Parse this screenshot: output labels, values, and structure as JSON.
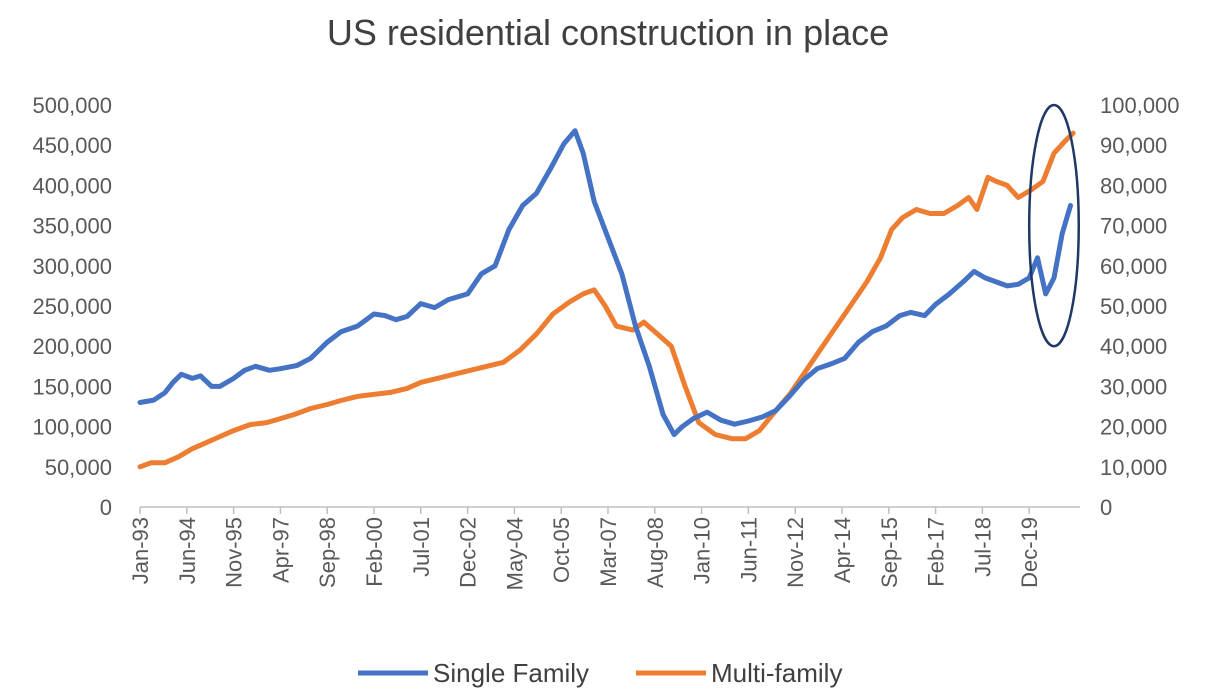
{
  "chart_data": {
    "type": "line",
    "title": "US residential construction in place",
    "xlabel": "",
    "ylabel": "",
    "y2label": "",
    "ylim": [
      0,
      500000
    ],
    "y2lim": [
      0,
      100000
    ],
    "yticks": [
      "0",
      "50,000",
      "100,000",
      "150,000",
      "200,000",
      "250,000",
      "300,000",
      "350,000",
      "400,000",
      "450,000",
      "500,000"
    ],
    "y2ticks": [
      "0",
      "10,000",
      "20,000",
      "30,000",
      "40,000",
      "50,000",
      "60,000",
      "70,000",
      "80,000",
      "90,000",
      "100,000"
    ],
    "xticks": [
      "Jan-93",
      "Jun-94",
      "Nov-95",
      "Apr-97",
      "Sep-98",
      "Feb-00",
      "Jul-01",
      "Dec-02",
      "May-04",
      "Oct-05",
      "Mar-07",
      "Aug-08",
      "Jan-10",
      "Jun-11",
      "Nov-12",
      "Apr-14",
      "Sep-15",
      "Feb-17",
      "Jul-18",
      "Dec-19"
    ],
    "grid": false,
    "legend": "bottom",
    "series": [
      {
        "name": "Single Family",
        "axis": "left",
        "color": "#4472C4",
        "points": [
          [
            "1993-01",
            130000
          ],
          [
            "1993-06",
            133000
          ],
          [
            "1993-10",
            142000
          ],
          [
            "1994-01",
            155000
          ],
          [
            "1994-04",
            165000
          ],
          [
            "1994-08",
            160000
          ],
          [
            "1994-11",
            163000
          ],
          [
            "1995-03",
            150000
          ],
          [
            "1995-06",
            150000
          ],
          [
            "1995-11",
            160000
          ],
          [
            "1996-03",
            170000
          ],
          [
            "1996-07",
            175000
          ],
          [
            "1996-12",
            170000
          ],
          [
            "1997-04",
            172000
          ],
          [
            "1997-10",
            176000
          ],
          [
            "1998-03",
            185000
          ],
          [
            "1998-09",
            205000
          ],
          [
            "1999-02",
            218000
          ],
          [
            "1999-08",
            225000
          ],
          [
            "2000-02",
            240000
          ],
          [
            "2000-06",
            238000
          ],
          [
            "2000-10",
            233000
          ],
          [
            "2001-02",
            237000
          ],
          [
            "2001-07",
            253000
          ],
          [
            "2001-12",
            248000
          ],
          [
            "2002-05",
            258000
          ],
          [
            "2002-12",
            265000
          ],
          [
            "2003-05",
            290000
          ],
          [
            "2003-10",
            300000
          ],
          [
            "2004-03",
            345000
          ],
          [
            "2004-08",
            375000
          ],
          [
            "2005-01",
            390000
          ],
          [
            "2005-06",
            420000
          ],
          [
            "2005-11",
            452000
          ],
          [
            "2006-03",
            468000
          ],
          [
            "2006-06",
            440000
          ],
          [
            "2006-10",
            380000
          ],
          [
            "2007-03",
            335000
          ],
          [
            "2007-08",
            290000
          ],
          [
            "2008-01",
            225000
          ],
          [
            "2008-06",
            175000
          ],
          [
            "2008-11",
            115000
          ],
          [
            "2009-03",
            90000
          ],
          [
            "2009-06",
            100000
          ],
          [
            "2009-10",
            110000
          ],
          [
            "2010-03",
            118000
          ],
          [
            "2010-08",
            108000
          ],
          [
            "2011-01",
            103000
          ],
          [
            "2011-06",
            107000
          ],
          [
            "2011-11",
            112000
          ],
          [
            "2012-04",
            120000
          ],
          [
            "2012-09",
            138000
          ],
          [
            "2013-02",
            158000
          ],
          [
            "2013-07",
            172000
          ],
          [
            "2013-12",
            178000
          ],
          [
            "2014-05",
            185000
          ],
          [
            "2014-10",
            205000
          ],
          [
            "2015-03",
            218000
          ],
          [
            "2015-08",
            225000
          ],
          [
            "2016-01",
            238000
          ],
          [
            "2016-05",
            242000
          ],
          [
            "2016-10",
            238000
          ],
          [
            "2017-02",
            252000
          ],
          [
            "2017-07",
            265000
          ],
          [
            "2017-12",
            280000
          ],
          [
            "2018-04",
            293000
          ],
          [
            "2018-08",
            285000
          ],
          [
            "2018-12",
            280000
          ],
          [
            "2019-04",
            275000
          ],
          [
            "2019-08",
            277000
          ],
          [
            "2019-12",
            285000
          ],
          [
            "2020-03",
            310000
          ],
          [
            "2020-06",
            265000
          ],
          [
            "2020-09",
            285000
          ],
          [
            "2020-12",
            340000
          ],
          [
            "2021-03",
            375000
          ]
        ]
      },
      {
        "name": "Multi-family",
        "axis": "right",
        "color": "#ED7D31",
        "points": [
          [
            "1993-01",
            10000
          ],
          [
            "1993-05",
            11000
          ],
          [
            "1993-10",
            11000
          ],
          [
            "1994-03",
            12500
          ],
          [
            "1994-08",
            14500
          ],
          [
            "1995-01",
            16000
          ],
          [
            "1995-06",
            17500
          ],
          [
            "1995-11",
            19000
          ],
          [
            "1996-05",
            20500
          ],
          [
            "1996-11",
            21000
          ],
          [
            "1997-04",
            22000
          ],
          [
            "1997-09",
            23000
          ],
          [
            "1998-03",
            24500
          ],
          [
            "1998-09",
            25500
          ],
          [
            "1999-02",
            26500
          ],
          [
            "1999-08",
            27500
          ],
          [
            "2000-02",
            28000
          ],
          [
            "2000-08",
            28500
          ],
          [
            "2001-02",
            29500
          ],
          [
            "2001-07",
            31000
          ],
          [
            "2002-01",
            32000
          ],
          [
            "2002-07",
            33000
          ],
          [
            "2003-01",
            34000
          ],
          [
            "2003-07",
            35000
          ],
          [
            "2004-01",
            36000
          ],
          [
            "2004-07",
            39000
          ],
          [
            "2005-01",
            43000
          ],
          [
            "2005-07",
            48000
          ],
          [
            "2006-01",
            51000
          ],
          [
            "2006-06",
            53000
          ],
          [
            "2006-10",
            54000
          ],
          [
            "2007-02",
            50000
          ],
          [
            "2007-06",
            45000
          ],
          [
            "2007-12",
            44000
          ],
          [
            "2008-04",
            46000
          ],
          [
            "2008-09",
            43000
          ],
          [
            "2009-02",
            40000
          ],
          [
            "2009-07",
            30000
          ],
          [
            "2009-12",
            21000
          ],
          [
            "2010-06",
            18000
          ],
          [
            "2010-12",
            17000
          ],
          [
            "2011-05",
            17000
          ],
          [
            "2011-10",
            19000
          ],
          [
            "2012-04",
            24000
          ],
          [
            "2012-09",
            28000
          ],
          [
            "2013-02",
            33000
          ],
          [
            "2013-07",
            38000
          ],
          [
            "2014-01",
            44000
          ],
          [
            "2014-07",
            50000
          ],
          [
            "2015-01",
            56000
          ],
          [
            "2015-06",
            62000
          ],
          [
            "2015-10",
            69000
          ],
          [
            "2016-02",
            72000
          ],
          [
            "2016-07",
            74000
          ],
          [
            "2016-12",
            73000
          ],
          [
            "2017-05",
            73000
          ],
          [
            "2017-10",
            75000
          ],
          [
            "2018-02",
            77000
          ],
          [
            "2018-05",
            74000
          ],
          [
            "2018-09",
            82000
          ],
          [
            "2018-12",
            81000
          ],
          [
            "2019-04",
            80000
          ],
          [
            "2019-08",
            77000
          ],
          [
            "2020-01",
            79000
          ],
          [
            "2020-05",
            81000
          ],
          [
            "2020-09",
            88000
          ],
          [
            "2021-01",
            91000
          ],
          [
            "2021-04",
            93000
          ]
        ]
      }
    ],
    "annotations": [
      {
        "type": "ellipse",
        "color": "#1F3864",
        "x_start": "2019-12",
        "x_end": "2021-06",
        "y_low": 40000,
        "y_high": 100000,
        "axis": "right"
      }
    ]
  }
}
